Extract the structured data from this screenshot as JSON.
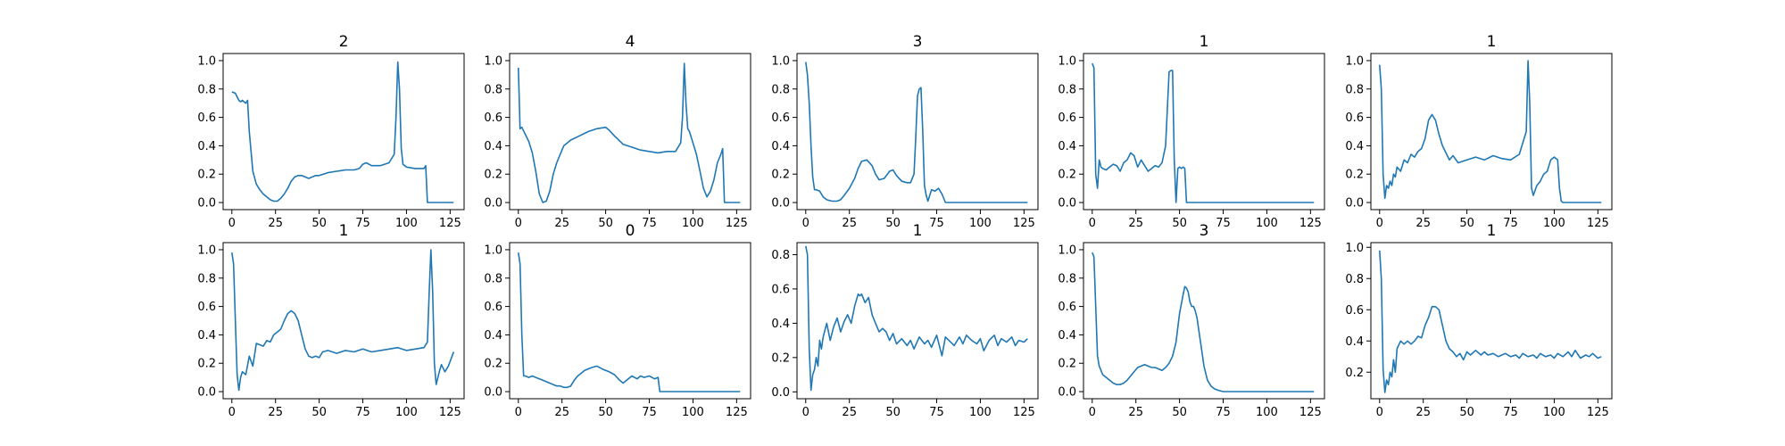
{
  "line_color": "#1f77b4",
  "chart_data": [
    {
      "type": "line",
      "title": "2",
      "xlim": [
        -5,
        133
      ],
      "ylim": [
        -0.05,
        1.05
      ],
      "xticks": [
        0,
        25,
        50,
        75,
        100,
        125
      ],
      "yticks": [
        0,
        0.2,
        0.4,
        0.6,
        0.8,
        1.0
      ],
      "x": [
        0,
        2,
        4,
        5,
        6,
        8,
        9,
        10,
        12,
        14,
        16,
        18,
        20,
        22,
        24,
        26,
        28,
        30,
        32,
        34,
        36,
        38,
        40,
        42,
        44,
        46,
        48,
        50,
        55,
        60,
        65,
        70,
        73,
        75,
        77,
        80,
        85,
        90,
        93,
        94,
        95,
        96,
        97,
        98,
        100,
        105,
        110,
        111,
        112,
        115,
        120,
        125,
        127
      ],
      "y": [
        0.78,
        0.77,
        0.72,
        0.71,
        0.72,
        0.7,
        0.72,
        0.5,
        0.22,
        0.13,
        0.09,
        0.06,
        0.04,
        0.02,
        0.01,
        0.01,
        0.03,
        0.06,
        0.1,
        0.15,
        0.18,
        0.19,
        0.19,
        0.18,
        0.17,
        0.18,
        0.19,
        0.19,
        0.21,
        0.22,
        0.23,
        0.23,
        0.24,
        0.27,
        0.28,
        0.26,
        0.26,
        0.28,
        0.34,
        0.6,
        0.99,
        0.8,
        0.38,
        0.27,
        0.25,
        0.24,
        0.24,
        0.26,
        0.0,
        0.0,
        0.0,
        0.0,
        0.0
      ]
    },
    {
      "type": "line",
      "title": "4",
      "xlim": [
        -5,
        133
      ],
      "ylim": [
        -0.05,
        1.05
      ],
      "xticks": [
        0,
        25,
        50,
        75,
        100,
        125
      ],
      "yticks": [
        0,
        0.2,
        0.4,
        0.6,
        0.8,
        1.0
      ],
      "x": [
        0,
        1,
        2,
        4,
        6,
        8,
        10,
        12,
        14,
        16,
        18,
        20,
        22,
        24,
        26,
        28,
        30,
        35,
        40,
        45,
        50,
        52,
        55,
        60,
        65,
        70,
        75,
        80,
        85,
        90,
        93,
        94,
        95,
        96,
        97,
        98,
        100,
        102,
        104,
        106,
        108,
        110,
        112,
        114,
        116,
        117,
        118,
        120,
        125,
        127
      ],
      "y": [
        0.95,
        0.52,
        0.53,
        0.48,
        0.43,
        0.35,
        0.22,
        0.06,
        0.0,
        0.01,
        0.08,
        0.2,
        0.28,
        0.34,
        0.4,
        0.42,
        0.44,
        0.47,
        0.5,
        0.52,
        0.53,
        0.51,
        0.47,
        0.41,
        0.39,
        0.37,
        0.36,
        0.35,
        0.36,
        0.36,
        0.42,
        0.6,
        0.98,
        0.7,
        0.52,
        0.5,
        0.42,
        0.34,
        0.22,
        0.1,
        0.04,
        0.08,
        0.16,
        0.28,
        0.34,
        0.38,
        0.0,
        0.0,
        0.0,
        0.0
      ]
    },
    {
      "type": "line",
      "title": "3",
      "xlim": [
        -5,
        133
      ],
      "ylim": [
        -0.05,
        1.05
      ],
      "xticks": [
        0,
        25,
        50,
        75,
        100,
        125
      ],
      "yticks": [
        0,
        0.2,
        0.4,
        0.6,
        0.8,
        1.0
      ],
      "x": [
        0,
        1,
        2,
        3,
        4,
        5,
        6,
        8,
        10,
        12,
        15,
        18,
        20,
        22,
        25,
        28,
        30,
        32,
        35,
        38,
        40,
        42,
        45,
        48,
        50,
        52,
        55,
        58,
        60,
        62,
        63,
        64,
        65,
        66,
        67,
        68,
        69,
        70,
        72,
        74,
        76,
        78,
        80,
        85,
        90,
        100,
        110,
        120,
        125,
        127
      ],
      "y": [
        0.99,
        0.9,
        0.7,
        0.4,
        0.18,
        0.09,
        0.09,
        0.08,
        0.04,
        0.02,
        0.01,
        0.01,
        0.02,
        0.05,
        0.1,
        0.17,
        0.24,
        0.29,
        0.3,
        0.26,
        0.2,
        0.16,
        0.17,
        0.22,
        0.23,
        0.19,
        0.15,
        0.14,
        0.14,
        0.2,
        0.45,
        0.75,
        0.8,
        0.81,
        0.5,
        0.12,
        0.05,
        0.01,
        0.09,
        0.08,
        0.1,
        0.06,
        0.0,
        0.0,
        0.0,
        0.0,
        0.0,
        0.0,
        0.0,
        0.0
      ]
    },
    {
      "type": "line",
      "title": "1",
      "xlim": [
        -5,
        133
      ],
      "ylim": [
        -0.05,
        1.05
      ],
      "xticks": [
        0,
        25,
        50,
        75,
        100,
        125
      ],
      "yticks": [
        0,
        0.2,
        0.4,
        0.6,
        0.8,
        1.0
      ],
      "x": [
        0,
        1,
        2,
        3,
        4,
        5,
        6,
        8,
        10,
        12,
        14,
        16,
        18,
        20,
        22,
        24,
        26,
        28,
        30,
        32,
        34,
        36,
        38,
        40,
        42,
        44,
        45,
        46,
        47,
        48,
        49,
        50,
        51,
        52,
        53,
        54,
        55,
        56,
        57,
        60,
        70,
        80,
        100,
        120,
        125,
        127
      ],
      "y": [
        0.98,
        0.95,
        0.2,
        0.1,
        0.3,
        0.25,
        0.24,
        0.23,
        0.25,
        0.27,
        0.26,
        0.22,
        0.28,
        0.3,
        0.35,
        0.33,
        0.25,
        0.3,
        0.26,
        0.22,
        0.24,
        0.26,
        0.25,
        0.28,
        0.4,
        0.92,
        0.93,
        0.93,
        0.3,
        0.0,
        0.24,
        0.25,
        0.24,
        0.25,
        0.24,
        0.0,
        0.0,
        0.0,
        0.0,
        0.0,
        0.0,
        0.0,
        0.0,
        0.0,
        0.0,
        0.0
      ]
    },
    {
      "type": "line",
      "title": "1",
      "xlim": [
        -5,
        133
      ],
      "ylim": [
        -0.05,
        1.05
      ],
      "xticks": [
        0,
        25,
        50,
        75,
        100,
        125
      ],
      "yticks": [
        0,
        0.2,
        0.4,
        0.6,
        0.8,
        1.0
      ],
      "x": [
        0,
        1,
        2,
        3,
        4,
        5,
        6,
        7,
        8,
        9,
        10,
        12,
        14,
        16,
        18,
        20,
        22,
        24,
        26,
        28,
        30,
        32,
        34,
        36,
        38,
        40,
        42,
        45,
        50,
        55,
        60,
        65,
        70,
        75,
        80,
        84,
        85,
        86,
        87,
        88,
        90,
        92,
        94,
        96,
        98,
        100,
        102,
        103,
        104,
        105,
        110,
        120,
        125,
        127
      ],
      "y": [
        0.97,
        0.8,
        0.2,
        0.03,
        0.12,
        0.1,
        0.15,
        0.12,
        0.2,
        0.18,
        0.25,
        0.22,
        0.3,
        0.28,
        0.34,
        0.32,
        0.36,
        0.38,
        0.45,
        0.58,
        0.62,
        0.58,
        0.48,
        0.4,
        0.35,
        0.3,
        0.33,
        0.28,
        0.3,
        0.32,
        0.3,
        0.33,
        0.31,
        0.3,
        0.34,
        0.5,
        1.0,
        0.7,
        0.1,
        0.05,
        0.12,
        0.15,
        0.2,
        0.22,
        0.3,
        0.32,
        0.3,
        0.1,
        0.01,
        0.0,
        0.0,
        0.0,
        0.0,
        0.0
      ]
    },
    {
      "type": "line",
      "title": "1",
      "xlim": [
        -5,
        133
      ],
      "ylim": [
        -0.05,
        1.05
      ],
      "xticks": [
        0,
        25,
        50,
        75,
        100,
        125
      ],
      "yticks": [
        0,
        0.2,
        0.4,
        0.6,
        0.8,
        1.0
      ],
      "x": [
        0,
        1,
        2,
        3,
        4,
        5,
        6,
        8,
        10,
        12,
        14,
        16,
        18,
        20,
        22,
        24,
        26,
        28,
        30,
        32,
        34,
        36,
        38,
        40,
        42,
        44,
        46,
        48,
        50,
        52,
        55,
        60,
        65,
        70,
        75,
        80,
        85,
        90,
        95,
        100,
        105,
        110,
        112,
        113,
        114,
        115,
        116,
        117,
        118,
        119,
        120,
        122,
        124,
        127
      ],
      "y": [
        0.98,
        0.9,
        0.5,
        0.12,
        0.01,
        0.1,
        0.14,
        0.12,
        0.25,
        0.18,
        0.34,
        0.33,
        0.32,
        0.36,
        0.35,
        0.4,
        0.42,
        0.44,
        0.5,
        0.55,
        0.57,
        0.55,
        0.5,
        0.4,
        0.3,
        0.25,
        0.24,
        0.25,
        0.24,
        0.28,
        0.29,
        0.27,
        0.29,
        0.28,
        0.3,
        0.28,
        0.29,
        0.3,
        0.31,
        0.29,
        0.3,
        0.31,
        0.35,
        0.7,
        1.0,
        0.7,
        0.2,
        0.05,
        0.1,
        0.15,
        0.19,
        0.14,
        0.18,
        0.28
      ]
    },
    {
      "type": "line",
      "title": "0",
      "xlim": [
        -5,
        133
      ],
      "ylim": [
        -0.05,
        1.05
      ],
      "xticks": [
        0,
        25,
        50,
        75,
        100,
        125
      ],
      "yticks": [
        0,
        0.2,
        0.4,
        0.6,
        0.8,
        1.0
      ],
      "x": [
        0,
        1,
        2,
        3,
        4,
        6,
        8,
        10,
        12,
        14,
        16,
        18,
        20,
        22,
        24,
        26,
        28,
        30,
        32,
        34,
        36,
        38,
        40,
        42,
        45,
        48,
        50,
        52,
        55,
        58,
        60,
        62,
        65,
        68,
        70,
        72,
        75,
        78,
        80,
        81,
        85,
        90,
        100,
        110,
        120,
        125,
        127
      ],
      "y": [
        0.98,
        0.9,
        0.4,
        0.11,
        0.11,
        0.1,
        0.11,
        0.1,
        0.09,
        0.08,
        0.07,
        0.06,
        0.05,
        0.04,
        0.04,
        0.03,
        0.03,
        0.04,
        0.08,
        0.11,
        0.13,
        0.15,
        0.16,
        0.17,
        0.18,
        0.16,
        0.15,
        0.14,
        0.12,
        0.08,
        0.06,
        0.08,
        0.11,
        0.09,
        0.11,
        0.1,
        0.11,
        0.09,
        0.1,
        0.0,
        0.0,
        0.0,
        0.0,
        0.0,
        0.0,
        0.0,
        0.0
      ]
    },
    {
      "type": "line",
      "title": "1",
      "xlim": [
        -5,
        133
      ],
      "ylim": [
        -0.04,
        0.87
      ],
      "xticks": [
        0,
        25,
        50,
        75,
        100,
        125
      ],
      "yticks": [
        0,
        0.2,
        0.4,
        0.6,
        0.8
      ],
      "x": [
        0,
        1,
        2,
        3,
        4,
        5,
        6,
        7,
        8,
        9,
        10,
        12,
        14,
        16,
        18,
        20,
        22,
        24,
        26,
        28,
        30,
        31,
        32,
        34,
        36,
        38,
        40,
        42,
        44,
        46,
        48,
        50,
        52,
        55,
        58,
        60,
        62,
        65,
        68,
        70,
        72,
        75,
        78,
        80,
        82,
        85,
        88,
        90,
        92,
        95,
        98,
        100,
        102,
        105,
        108,
        110,
        112,
        115,
        118,
        120,
        122,
        125,
        127
      ],
      "y": [
        0.85,
        0.8,
        0.25,
        0.01,
        0.1,
        0.13,
        0.2,
        0.15,
        0.3,
        0.25,
        0.32,
        0.4,
        0.3,
        0.38,
        0.43,
        0.35,
        0.41,
        0.45,
        0.4,
        0.5,
        0.57,
        0.56,
        0.57,
        0.52,
        0.55,
        0.45,
        0.4,
        0.35,
        0.37,
        0.35,
        0.3,
        0.34,
        0.28,
        0.31,
        0.27,
        0.3,
        0.25,
        0.32,
        0.28,
        0.3,
        0.26,
        0.33,
        0.21,
        0.32,
        0.3,
        0.27,
        0.32,
        0.28,
        0.33,
        0.3,
        0.28,
        0.31,
        0.24,
        0.3,
        0.33,
        0.27,
        0.31,
        0.29,
        0.32,
        0.27,
        0.3,
        0.29,
        0.31
      ]
    },
    {
      "type": "line",
      "title": "3",
      "xlim": [
        -5,
        133
      ],
      "ylim": [
        -0.05,
        1.05
      ],
      "xticks": [
        0,
        25,
        50,
        75,
        100,
        125
      ],
      "yticks": [
        0,
        0.2,
        0.4,
        0.6,
        0.8,
        1.0
      ],
      "x": [
        0,
        1,
        2,
        3,
        4,
        5,
        6,
        8,
        10,
        12,
        14,
        16,
        18,
        20,
        22,
        24,
        26,
        28,
        30,
        32,
        34,
        36,
        38,
        40,
        42,
        44,
        46,
        48,
        50,
        52,
        53,
        54,
        55,
        56,
        57,
        58,
        59,
        60,
        62,
        64,
        66,
        68,
        70,
        72,
        75,
        80,
        90,
        100,
        110,
        120,
        125,
        127
      ],
      "y": [
        0.98,
        0.95,
        0.6,
        0.25,
        0.18,
        0.15,
        0.12,
        0.1,
        0.08,
        0.06,
        0.05,
        0.05,
        0.06,
        0.08,
        0.11,
        0.14,
        0.17,
        0.18,
        0.19,
        0.18,
        0.17,
        0.17,
        0.16,
        0.15,
        0.17,
        0.2,
        0.25,
        0.35,
        0.55,
        0.68,
        0.74,
        0.73,
        0.7,
        0.63,
        0.6,
        0.6,
        0.57,
        0.52,
        0.35,
        0.18,
        0.08,
        0.04,
        0.02,
        0.01,
        0.0,
        0.0,
        0.0,
        0.0,
        0.0,
        0.0,
        0.0,
        0.0
      ]
    },
    {
      "type": "line",
      "title": "1",
      "xlim": [
        -5,
        133
      ],
      "ylim": [
        0.03,
        1.03
      ],
      "xticks": [
        0,
        25,
        50,
        75,
        100,
        125
      ],
      "yticks": [
        0.2,
        0.4,
        0.6,
        0.8,
        1.0
      ],
      "x": [
        0,
        1,
        2,
        3,
        4,
        5,
        6,
        7,
        8,
        9,
        10,
        12,
        14,
        16,
        18,
        20,
        22,
        24,
        26,
        28,
        30,
        32,
        34,
        36,
        38,
        40,
        42,
        44,
        46,
        48,
        50,
        52,
        55,
        58,
        60,
        62,
        65,
        68,
        70,
        72,
        75,
        78,
        80,
        82,
        85,
        88,
        90,
        92,
        95,
        98,
        100,
        102,
        105,
        108,
        110,
        112,
        115,
        118,
        120,
        122,
        125,
        127
      ],
      "y": [
        0.98,
        0.8,
        0.22,
        0.07,
        0.15,
        0.12,
        0.2,
        0.17,
        0.28,
        0.2,
        0.35,
        0.4,
        0.38,
        0.4,
        0.38,
        0.4,
        0.43,
        0.42,
        0.5,
        0.55,
        0.62,
        0.62,
        0.6,
        0.5,
        0.4,
        0.35,
        0.33,
        0.3,
        0.32,
        0.28,
        0.33,
        0.31,
        0.34,
        0.31,
        0.33,
        0.31,
        0.32,
        0.3,
        0.31,
        0.32,
        0.3,
        0.31,
        0.29,
        0.32,
        0.3,
        0.31,
        0.29,
        0.32,
        0.3,
        0.31,
        0.29,
        0.32,
        0.3,
        0.33,
        0.3,
        0.34,
        0.29,
        0.31,
        0.3,
        0.32,
        0.29,
        0.3
      ]
    }
  ]
}
